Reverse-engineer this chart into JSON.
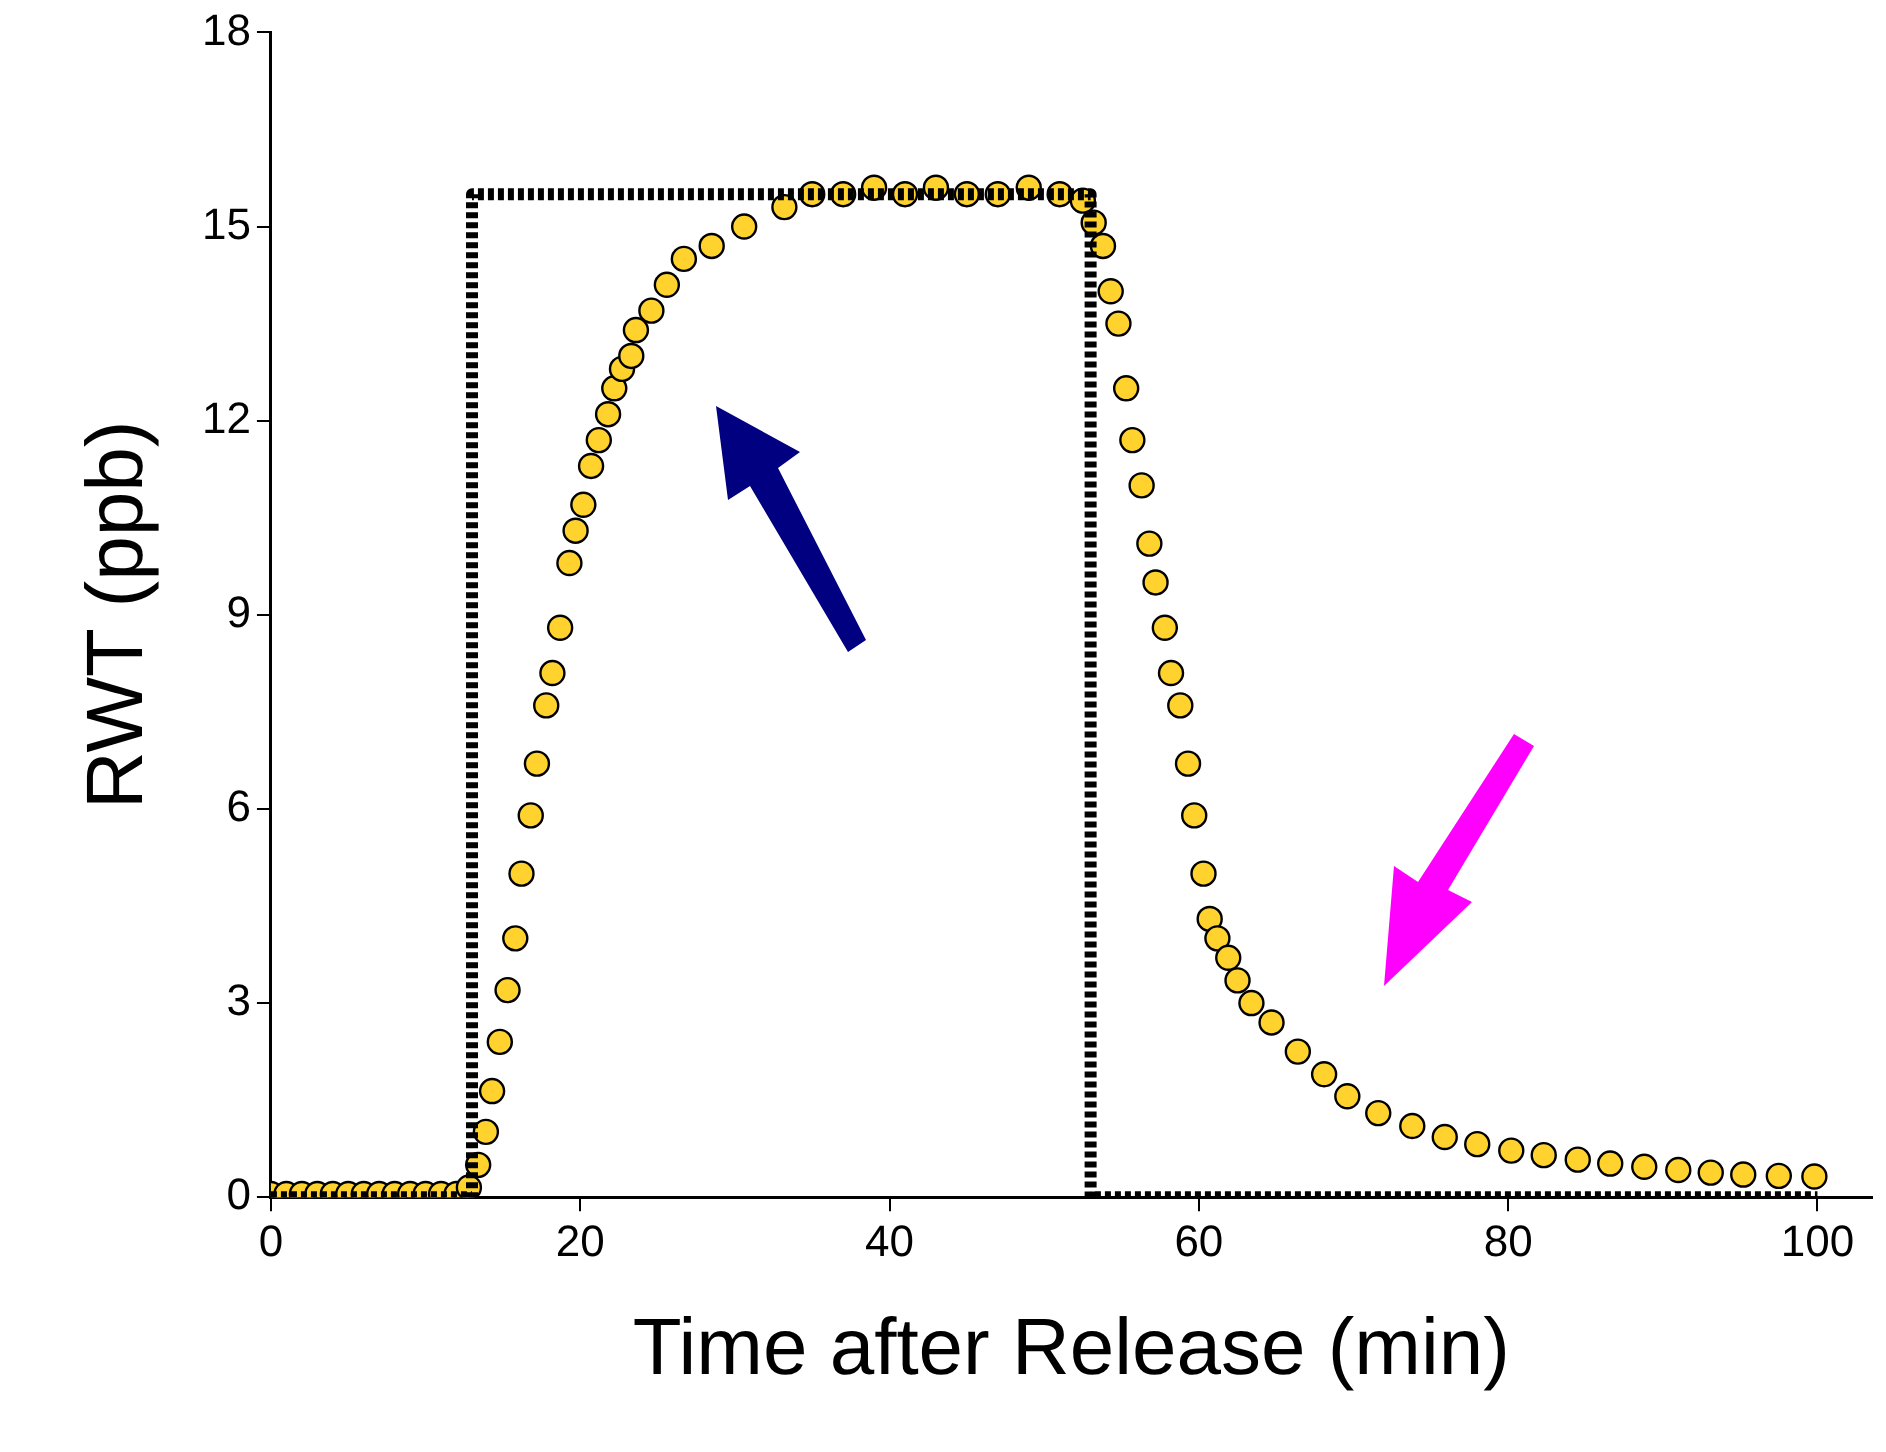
{
  "chart_data": {
    "type": "scatter",
    "xlabel": "Time after Release (min)",
    "ylabel": "RWT (ppb)",
    "xlim": [
      0,
      103.5
    ],
    "xticks": [
      0,
      20,
      40,
      60,
      80,
      100
    ],
    "ylim": [
      0,
      18
    ],
    "yticks": [
      0,
      3,
      6,
      9,
      12,
      15,
      18
    ],
    "grid": false,
    "series": [
      {
        "type": "line",
        "color": "#000000",
        "line_style": "dotted",
        "marker": "none",
        "x": [
          0,
          13,
          13,
          53,
          53,
          100
        ],
        "values": [
          0,
          0,
          15.5,
          15.5,
          0,
          0
        ]
      },
      {
        "type": "scatter",
        "color": "#ffd22e",
        "marker": "circle",
        "x": [
          0,
          1,
          2,
          3,
          4,
          5,
          6,
          7,
          8,
          9,
          10,
          11,
          12,
          12.8,
          13.4,
          13.9,
          14.3,
          14.8,
          15.3,
          15.8,
          16.2,
          16.8,
          17.2,
          17.8,
          18.2,
          18.7,
          19.3,
          19.7,
          20.2,
          20.7,
          21.2,
          21.8,
          22.2,
          22.7,
          23.3,
          23.6,
          24.6,
          25.6,
          26.7,
          28.5,
          30.6,
          33.2,
          35,
          37,
          39,
          41,
          43,
          45,
          47,
          49,
          51,
          52.5,
          53.2,
          53.8,
          54.3,
          54.8,
          55.3,
          55.7,
          56.3,
          56.8,
          57.2,
          57.8,
          58.2,
          58.8,
          59.3,
          59.7,
          60.3,
          60.7,
          61.2,
          61.9,
          62.5,
          63.4,
          64.7,
          66.4,
          68.1,
          69.6,
          71.6,
          73.8,
          75.9,
          78,
          80.2,
          82.3,
          84.5,
          86.6,
          88.8,
          91,
          93.1,
          95.2,
          97.5,
          99.8
        ],
        "values": [
          0.05,
          0.05,
          0.05,
          0.05,
          0.05,
          0.05,
          0.05,
          0.05,
          0.05,
          0.05,
          0.05,
          0.05,
          0.05,
          0.15,
          0.5,
          1.01,
          1.64,
          2.4,
          3.2,
          4,
          5,
          5.9,
          6.7,
          7.6,
          8.1,
          8.8,
          9.8,
          10.3,
          10.7,
          11.3,
          11.7,
          12.1,
          12.5,
          12.8,
          13,
          13.4,
          13.7,
          14.1,
          14.5,
          14.7,
          15,
          15.3,
          15.5,
          15.5,
          15.6,
          15.5,
          15.6,
          15.5,
          15.5,
          15.6,
          15.5,
          15.4,
          15.06,
          14.7,
          14,
          13.5,
          12.5,
          11.7,
          11,
          10.1,
          9.5,
          8.8,
          8.1,
          7.6,
          6.7,
          5.9,
          5,
          4.3,
          4,
          3.7,
          3.35,
          3,
          2.7,
          2.25,
          1.9,
          1.56,
          1.3,
          1.1,
          0.93,
          0.82,
          0.72,
          0.65,
          0.58,
          0.52,
          0.47,
          0.42,
          0.38,
          0.35,
          0.33,
          0.32
        ]
      }
    ]
  }
}
